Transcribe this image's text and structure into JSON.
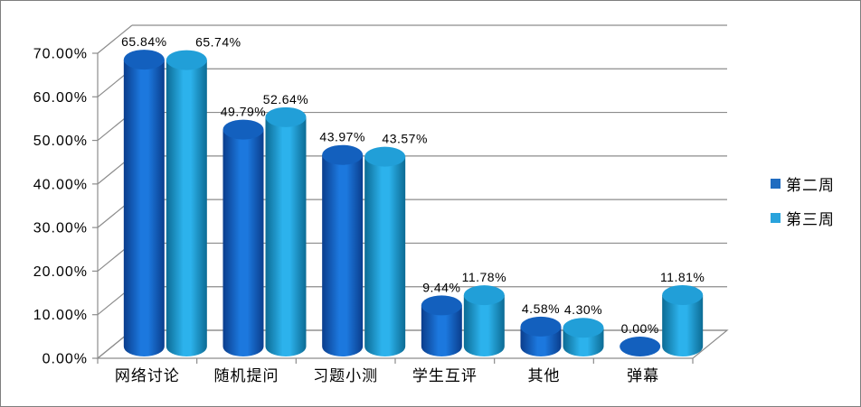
{
  "chart_data": {
    "type": "bar",
    "style": "3d-cylinder-clustered",
    "title": "",
    "categories": [
      "网络讨论",
      "随机提问",
      "习题小测",
      "学生互评",
      "其他",
      "弹幕"
    ],
    "series": [
      {
        "name": "第二周",
        "color_main": "#1F6CC0",
        "color_dark": "#0A3D8C",
        "color_light": "#1C78DE",
        "color_top": "#1360BE",
        "values": [
          65.84,
          49.79,
          43.97,
          9.44,
          4.58,
          0.0
        ],
        "labels": [
          "65.84%",
          "49.79%",
          "43.97%",
          "9.44%",
          "4.58%",
          "0.00%"
        ]
      },
      {
        "name": "第三周",
        "color_main": "#29A3DC",
        "color_dark": "#0C6B94",
        "color_light": "#2CB2EC",
        "color_top": "#219FD8",
        "values": [
          65.74,
          52.64,
          43.57,
          11.78,
          4.3,
          11.81
        ],
        "labels": [
          "65.74%",
          "52.64%",
          "43.57%",
          "11.78%",
          "4.30%",
          "11.81%"
        ]
      }
    ],
    "y_axis": {
      "min": 0,
      "max": 70,
      "step": 10,
      "ticks": [
        "0.00%",
        "10.00%",
        "20.00%",
        "30.00%",
        "40.00%",
        "50.00%",
        "60.00%",
        "70.00%"
      ],
      "format": "percent"
    },
    "grid": true,
    "legend_position": "right",
    "axis_color": "#8C8C8C",
    "label_color": "#000000",
    "background": "#FFFFFF"
  }
}
